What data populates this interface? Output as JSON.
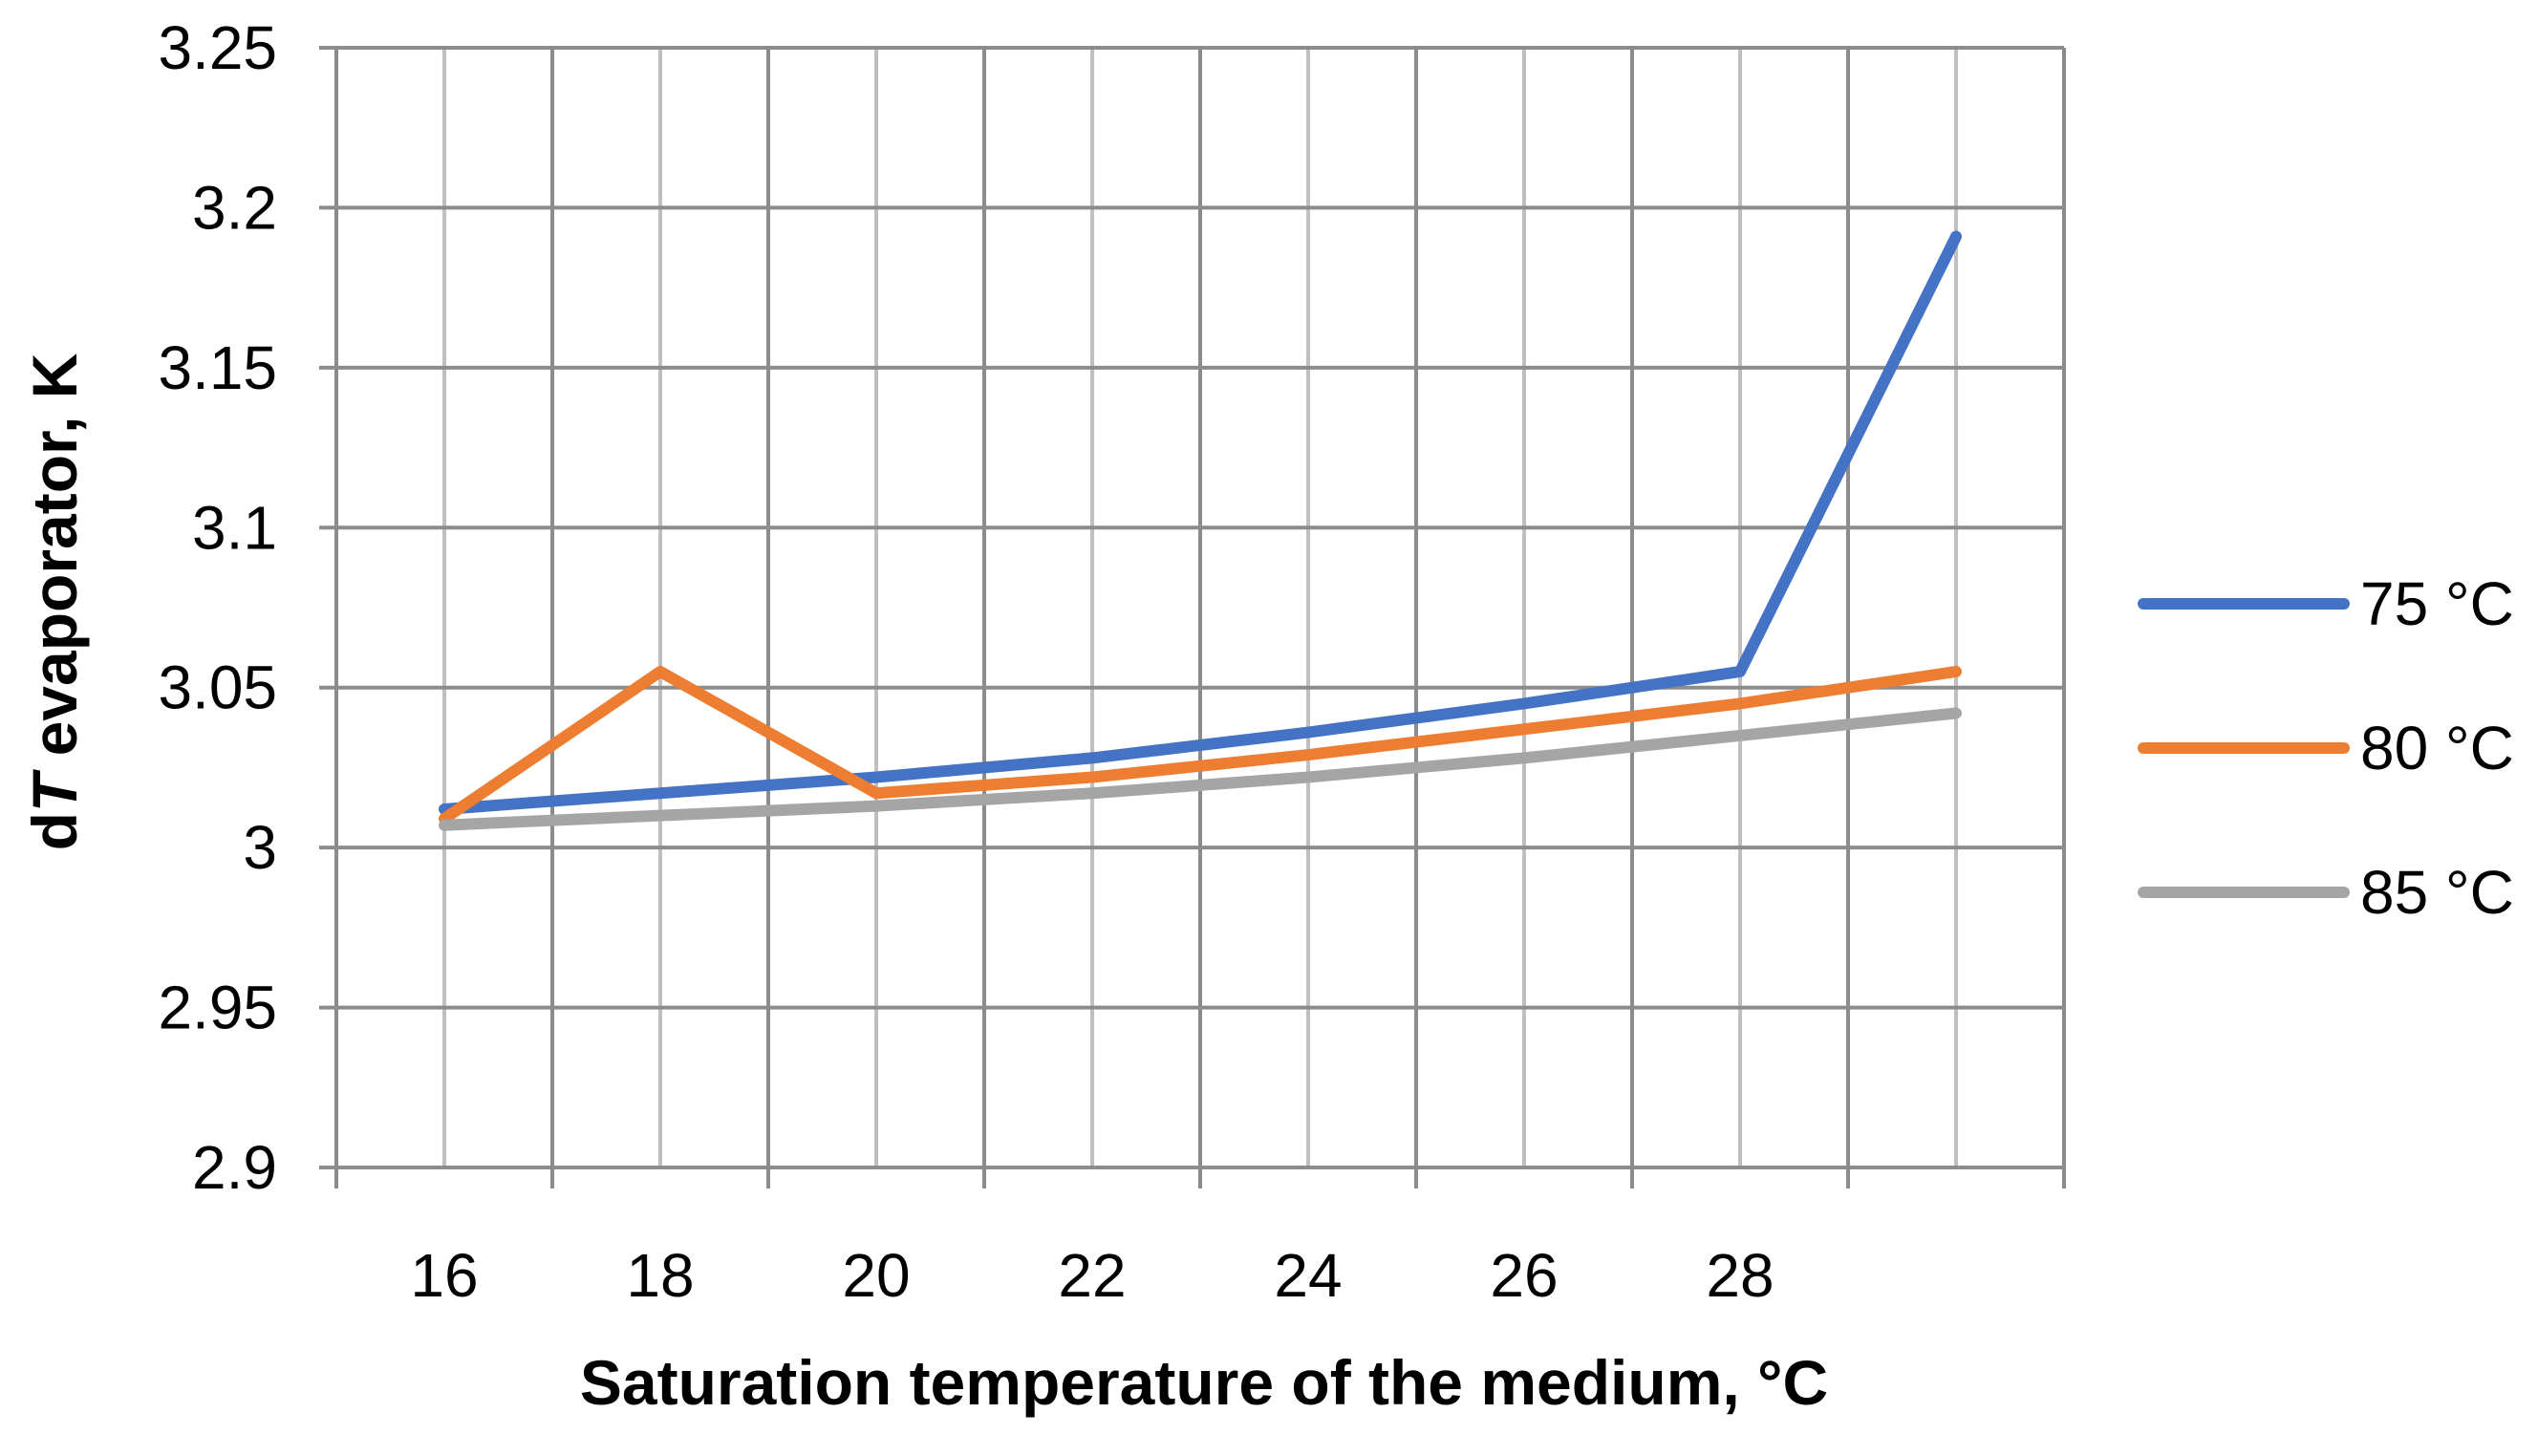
{
  "chart_data": {
    "type": "line",
    "xlabel": "Saturation temperature of the medium, °C",
    "ylabel_prefix": "d",
    "ylabel_italic": "T",
    "ylabel_suffix": " evaporator, K",
    "ylim": [
      2.9,
      3.25
    ],
    "yticks": [
      2.9,
      2.95,
      3,
      3.05,
      3.1,
      3.15,
      3.2,
      3.25
    ],
    "ytick_labels": [
      "2.9",
      "2.95",
      "3",
      "3.05",
      "3.1",
      "3.15",
      "3.2",
      "3.25"
    ],
    "xlim": [
      15,
      31
    ],
    "xticks": [
      16,
      18,
      20,
      22,
      24,
      26,
      28
    ],
    "xtick_labels": [
      "16",
      "18",
      "20",
      "22",
      "24",
      "26",
      "28"
    ],
    "grid": true,
    "legend_position": "right",
    "x": [
      16,
      18,
      20,
      22,
      24,
      26,
      28,
      30
    ],
    "series": [
      {
        "name": "75 °C",
        "color": "#4472C4",
        "values": [
          3.012,
          3.017,
          3.022,
          3.028,
          3.036,
          3.045,
          3.055,
          3.191
        ]
      },
      {
        "name": "80 °C",
        "color": "#ED7D31",
        "values": [
          3.009,
          3.055,
          3.017,
          3.022,
          3.029,
          3.037,
          3.045,
          3.055
        ]
      },
      {
        "name": "85 °C",
        "color": "#A5A5A5",
        "values": [
          3.007,
          3.01,
          3.013,
          3.017,
          3.022,
          3.028,
          3.035,
          3.042
        ]
      }
    ]
  }
}
